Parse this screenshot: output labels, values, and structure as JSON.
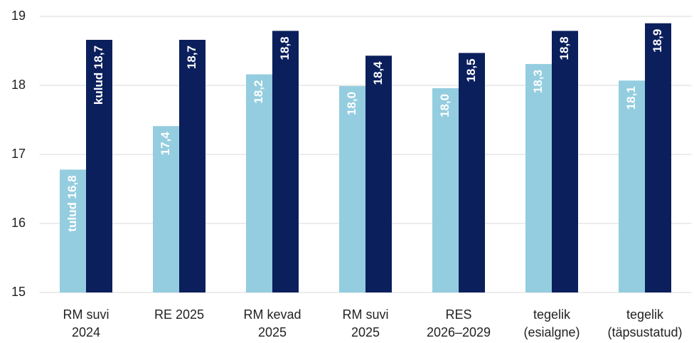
{
  "chart_data": {
    "type": "bar",
    "categories": [
      [
        "RM suvi",
        "2024"
      ],
      [
        "RE 2025"
      ],
      [
        "RM kevad",
        "2025"
      ],
      [
        "RM suvi",
        "2025"
      ],
      [
        "RES",
        "2026–2029"
      ],
      [
        "tegelik",
        "(esialgne)"
      ],
      [
        "tegelik",
        "(täpsustatud)"
      ]
    ],
    "series": [
      {
        "color": "#94cddf",
        "values": [
          16.78,
          17.41,
          18.16,
          17.99,
          17.96,
          18.31,
          18.07
        ],
        "value_labels": [
          "tulud 16,8",
          "17,4",
          "18,2",
          "18,0",
          "18,0",
          "18,3",
          "18,1"
        ]
      },
      {
        "color": "#0b1f5c",
        "values": [
          18.66,
          18.66,
          18.79,
          18.43,
          18.47,
          18.79,
          18.9
        ],
        "value_labels": [
          "kulud 18,7",
          "18,7",
          "18,8",
          "18,4",
          "18,5",
          "18,8",
          "18,9"
        ]
      }
    ],
    "ylim": [
      15,
      19
    ],
    "yticks": [
      15,
      16,
      17,
      18,
      19
    ],
    "grid": true
  }
}
